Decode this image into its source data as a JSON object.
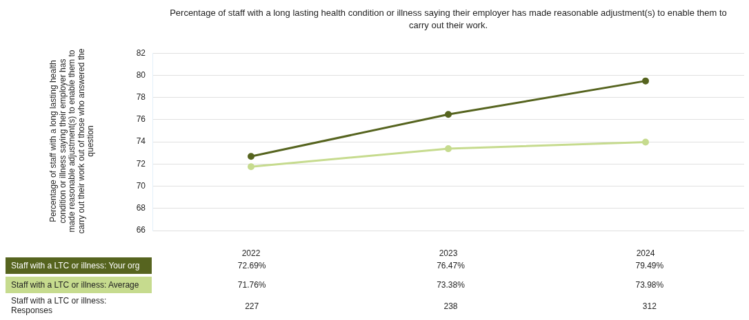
{
  "chart_data": {
    "type": "line",
    "title": "Percentage of staff with a long lasting health condition or illness saying their employer has made reasonable adjustment(s) to enable them to carry out their work.",
    "ylabel": "Percentage of staff with a long lasting health condition or illness saying their employer has made reasonable adjustment(s) to enable them to carry out their work out of those who answered the question",
    "categories": [
      "2022",
      "2023",
      "2024"
    ],
    "series": [
      {
        "name": "Staff with a LTC or illness: Your org",
        "color": "#56641f",
        "values": [
          72.69,
          76.47,
          79.49
        ],
        "value_labels": [
          "72.69%",
          "76.47%",
          "79.49%"
        ]
      },
      {
        "name": "Staff with a LTC or illness: Average",
        "color": "#c6db8e",
        "values": [
          71.76,
          73.38,
          73.98
        ],
        "value_labels": [
          "71.76%",
          "73.38%",
          "73.98%"
        ]
      }
    ],
    "annotations": [
      "Staff with a LTC or illness: Responses",
      "227",
      "238",
      "312"
    ],
    "ylim": [
      66,
      82
    ],
    "yticks": [
      66,
      68,
      70,
      72,
      74,
      76,
      78,
      80,
      82
    ],
    "grid": "y",
    "legend": "bottom",
    "marker": "circle",
    "line_style": "solid"
  }
}
